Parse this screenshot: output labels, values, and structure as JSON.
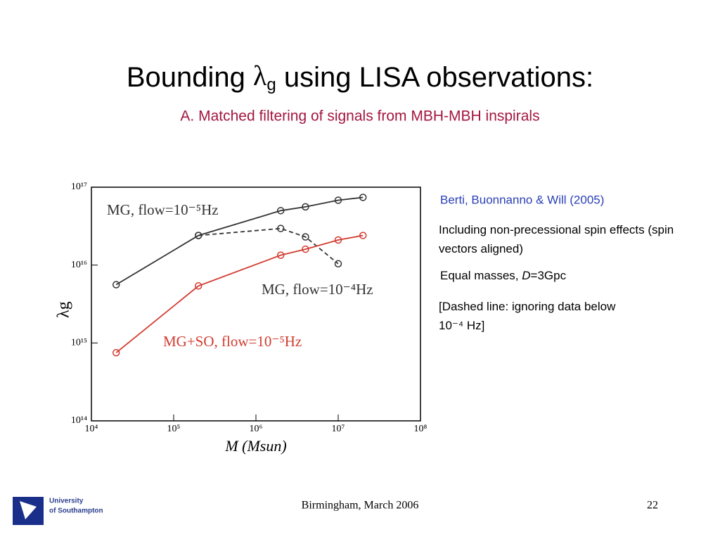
{
  "slide": {
    "title_main": "Bounding ",
    "title_symbol": "λ",
    "title_sub": "g",
    "title_rest": " using LISA observations:",
    "subtitle": "A. Matched filtering of signals from MBH-MBH inspirals",
    "notes": {
      "citation": "Berti, Buonnanno & Will (2005)",
      "spin": "Including non-precessional spin effects (spin vectors aligned)",
      "masses_prefix": "Equal masses, ",
      "masses_var": "D",
      "masses_rest": "=3Gpc",
      "dashed": "[Dashed line: ignoring data below 10⁻⁴ Hz]"
    },
    "footer": "Birmingham, March 2006",
    "page": "22",
    "logo_line1": "University",
    "logo_line2": "of Southampton"
  },
  "chart_data": {
    "type": "line",
    "x_label": "M (Msun)",
    "y_label": "λg",
    "xlog": true,
    "ylog": true,
    "xlim": [
      10000,
      100000000
    ],
    "ylim": [
      100000000000000.0,
      1e+17
    ],
    "xticks": [
      {
        "value": 10000,
        "label": "10⁴"
      },
      {
        "value": 100000,
        "label": "10⁵"
      },
      {
        "value": 1000000,
        "label": "10⁶"
      },
      {
        "value": 10000000,
        "label": "10⁷"
      },
      {
        "value": 100000000,
        "label": "10⁸"
      }
    ],
    "yticks": [
      {
        "value": 100000000000000.0,
        "label": "10¹⁴"
      },
      {
        "value": 1000000000000000.0,
        "label": "10¹⁵"
      },
      {
        "value": 1e+16,
        "label": "10¹⁶"
      },
      {
        "value": 1e+17,
        "label": "10¹⁷"
      }
    ],
    "series": [
      {
        "name": "MG, flow=10⁻⁵Hz",
        "color": "#333333",
        "dashed": false,
        "x": [
          20000,
          200000,
          2000000,
          4000000,
          10000000,
          20000000
        ],
        "values": [
          5600000000000000.0,
          2.4e+16,
          5e+16,
          5.6e+16,
          6.8e+16,
          7.4e+16
        ]
      },
      {
        "name": "MG, flow=10⁻⁴Hz",
        "color": "#333333",
        "dashed": true,
        "x": [
          200000,
          2000000,
          4000000,
          10000000
        ],
        "values": [
          2.4e+16,
          2.95e+16,
          2.3e+16,
          1.04e+16
        ]
      },
      {
        "name": "MG+SO, flow=10⁻⁵Hz",
        "color": "#d23b2f",
        "dashed": false,
        "x": [
          20000,
          200000,
          2000000,
          4000000,
          10000000,
          20000000
        ],
        "values": [
          750000000000000.0,
          5400000000000000.0,
          1.34e+16,
          1.6e+16,
          2.1e+16,
          2.4e+16
        ]
      }
    ]
  }
}
